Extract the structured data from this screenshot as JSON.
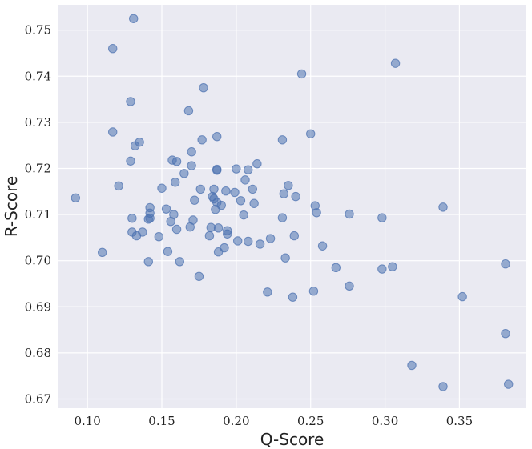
{
  "chart_data": {
    "type": "scatter",
    "title": "",
    "xlabel": "Q-Score",
    "ylabel": "R-Score",
    "xlim": [
      0.08,
      0.395
    ],
    "ylim": [
      0.668,
      0.7555
    ],
    "xticks": [
      0.1,
      0.15,
      0.2,
      0.25,
      0.3,
      0.35
    ],
    "xtick_labels": [
      "0.10",
      "0.15",
      "0.20",
      "0.25",
      "0.30",
      "0.35"
    ],
    "yticks": [
      0.67,
      0.68,
      0.69,
      0.7,
      0.71,
      0.72,
      0.73,
      0.74,
      0.75
    ],
    "ytick_labels": [
      "0.67",
      "0.68",
      "0.69",
      "0.70",
      "0.71",
      "0.72",
      "0.73",
      "0.74",
      "0.75"
    ],
    "grid": true,
    "colors": {
      "background": "#eaeaf2",
      "grid": "#ffffff",
      "marker": "#4c72b0"
    },
    "series": [
      {
        "points": [
          [
            0.092,
            0.7136
          ],
          [
            0.11,
            0.7018
          ],
          [
            0.117,
            0.746
          ],
          [
            0.117,
            0.7279
          ],
          [
            0.121,
            0.7162
          ],
          [
            0.129,
            0.7216
          ],
          [
            0.129,
            0.7345
          ],
          [
            0.13,
            0.7062
          ],
          [
            0.13,
            0.7092
          ],
          [
            0.131,
            0.7525
          ],
          [
            0.132,
            0.7249
          ],
          [
            0.133,
            0.7054
          ],
          [
            0.135,
            0.7257
          ],
          [
            0.137,
            0.7062
          ],
          [
            0.141,
            0.6998
          ],
          [
            0.141,
            0.709
          ],
          [
            0.142,
            0.7092
          ],
          [
            0.142,
            0.7103
          ],
          [
            0.142,
            0.7115
          ],
          [
            0.148,
            0.7052
          ],
          [
            0.15,
            0.7157
          ],
          [
            0.153,
            0.7112
          ],
          [
            0.154,
            0.702
          ],
          [
            0.156,
            0.7085
          ],
          [
            0.157,
            0.7218
          ],
          [
            0.158,
            0.71
          ],
          [
            0.159,
            0.717
          ],
          [
            0.16,
            0.7215
          ],
          [
            0.16,
            0.7068
          ],
          [
            0.162,
            0.6998
          ],
          [
            0.165,
            0.7189
          ],
          [
            0.168,
            0.7325
          ],
          [
            0.169,
            0.7073
          ],
          [
            0.17,
            0.7236
          ],
          [
            0.17,
            0.7206
          ],
          [
            0.171,
            0.7088
          ],
          [
            0.172,
            0.7131
          ],
          [
            0.175,
            0.6966
          ],
          [
            0.176,
            0.7155
          ],
          [
            0.177,
            0.7262
          ],
          [
            0.178,
            0.7375
          ],
          [
            0.182,
            0.7054
          ],
          [
            0.183,
            0.7072
          ],
          [
            0.184,
            0.7139
          ],
          [
            0.185,
            0.7155
          ],
          [
            0.185,
            0.7134
          ],
          [
            0.186,
            0.7111
          ],
          [
            0.187,
            0.7269
          ],
          [
            0.187,
            0.7198
          ],
          [
            0.187,
            0.7196
          ],
          [
            0.187,
            0.7126
          ],
          [
            0.188,
            0.7071
          ],
          [
            0.188,
            0.7019
          ],
          [
            0.19,
            0.712
          ],
          [
            0.192,
            0.7028
          ],
          [
            0.193,
            0.7151
          ],
          [
            0.194,
            0.7065
          ],
          [
            0.194,
            0.7058
          ],
          [
            0.199,
            0.7148
          ],
          [
            0.2,
            0.7199
          ],
          [
            0.201,
            0.7043
          ],
          [
            0.203,
            0.713
          ],
          [
            0.205,
            0.7099
          ],
          [
            0.206,
            0.7175
          ],
          [
            0.208,
            0.7197
          ],
          [
            0.208,
            0.7042
          ],
          [
            0.211,
            0.7155
          ],
          [
            0.212,
            0.7124
          ],
          [
            0.214,
            0.721
          ],
          [
            0.216,
            0.7036
          ],
          [
            0.221,
            0.6932
          ],
          [
            0.223,
            0.7048
          ],
          [
            0.231,
            0.7093
          ],
          [
            0.231,
            0.7262
          ],
          [
            0.232,
            0.7145
          ],
          [
            0.233,
            0.7006
          ],
          [
            0.235,
            0.7163
          ],
          [
            0.238,
            0.6921
          ],
          [
            0.239,
            0.7054
          ],
          [
            0.24,
            0.7139
          ],
          [
            0.244,
            0.7405
          ],
          [
            0.25,
            0.7275
          ],
          [
            0.252,
            0.6934
          ],
          [
            0.253,
            0.7119
          ],
          [
            0.254,
            0.7104
          ],
          [
            0.258,
            0.7032
          ],
          [
            0.267,
            0.6985
          ],
          [
            0.276,
            0.6945
          ],
          [
            0.276,
            0.7101
          ],
          [
            0.298,
            0.7093
          ],
          [
            0.298,
            0.6982
          ],
          [
            0.305,
            0.6987
          ],
          [
            0.307,
            0.7428
          ],
          [
            0.318,
            0.6773
          ],
          [
            0.339,
            0.6727
          ],
          [
            0.339,
            0.7116
          ],
          [
            0.352,
            0.6922
          ],
          [
            0.381,
            0.6993
          ],
          [
            0.381,
            0.6842
          ],
          [
            0.383,
            0.6732
          ]
        ]
      }
    ]
  }
}
